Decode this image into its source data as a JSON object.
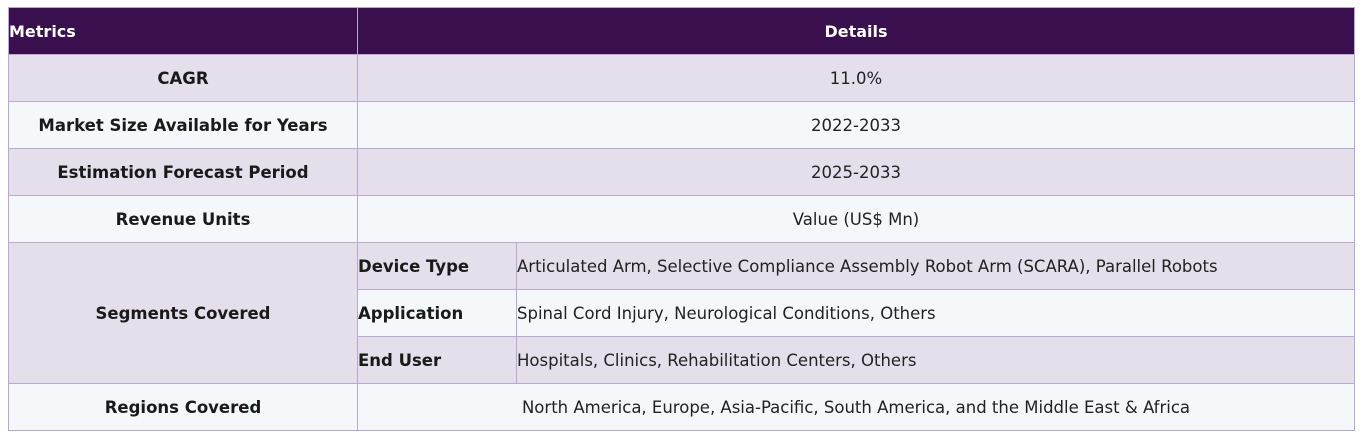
{
  "table": {
    "header": {
      "metrics": "Metrics",
      "details": "Details"
    },
    "rows": {
      "cagr": {
        "label": "CAGR",
        "value": "11.0%"
      },
      "market_size": {
        "label": "Market Size Available for Years",
        "value": "2022-2033"
      },
      "forecast": {
        "label": "Estimation Forecast Period",
        "value": "2025-2033"
      },
      "revenue": {
        "label": "Revenue Units",
        "value": "Value (US$ Mn)"
      },
      "segments": {
        "label": "Segments Covered",
        "device_type": {
          "label": "Device Type",
          "value": "Articulated Arm, Selective Compliance Assembly Robot Arm (SCARA), Parallel Robots"
        },
        "application": {
          "label": "Application",
          "value": "Spinal Cord Injury, Neurological Conditions, Others"
        },
        "end_user": {
          "label": "End User",
          "value": "Hospitals, Clinics, Rehabilitation Centers, Others"
        }
      },
      "regions": {
        "label": "Regions Covered",
        "value": "North America, Europe, Asia-Pacific, South America, and the Middle East & Africa"
      }
    },
    "colors": {
      "header_bg": "#3a0f4d",
      "row_shade": "#e4dfea",
      "row_light": "#f4f8fb",
      "border": "#b9a9d0"
    }
  }
}
